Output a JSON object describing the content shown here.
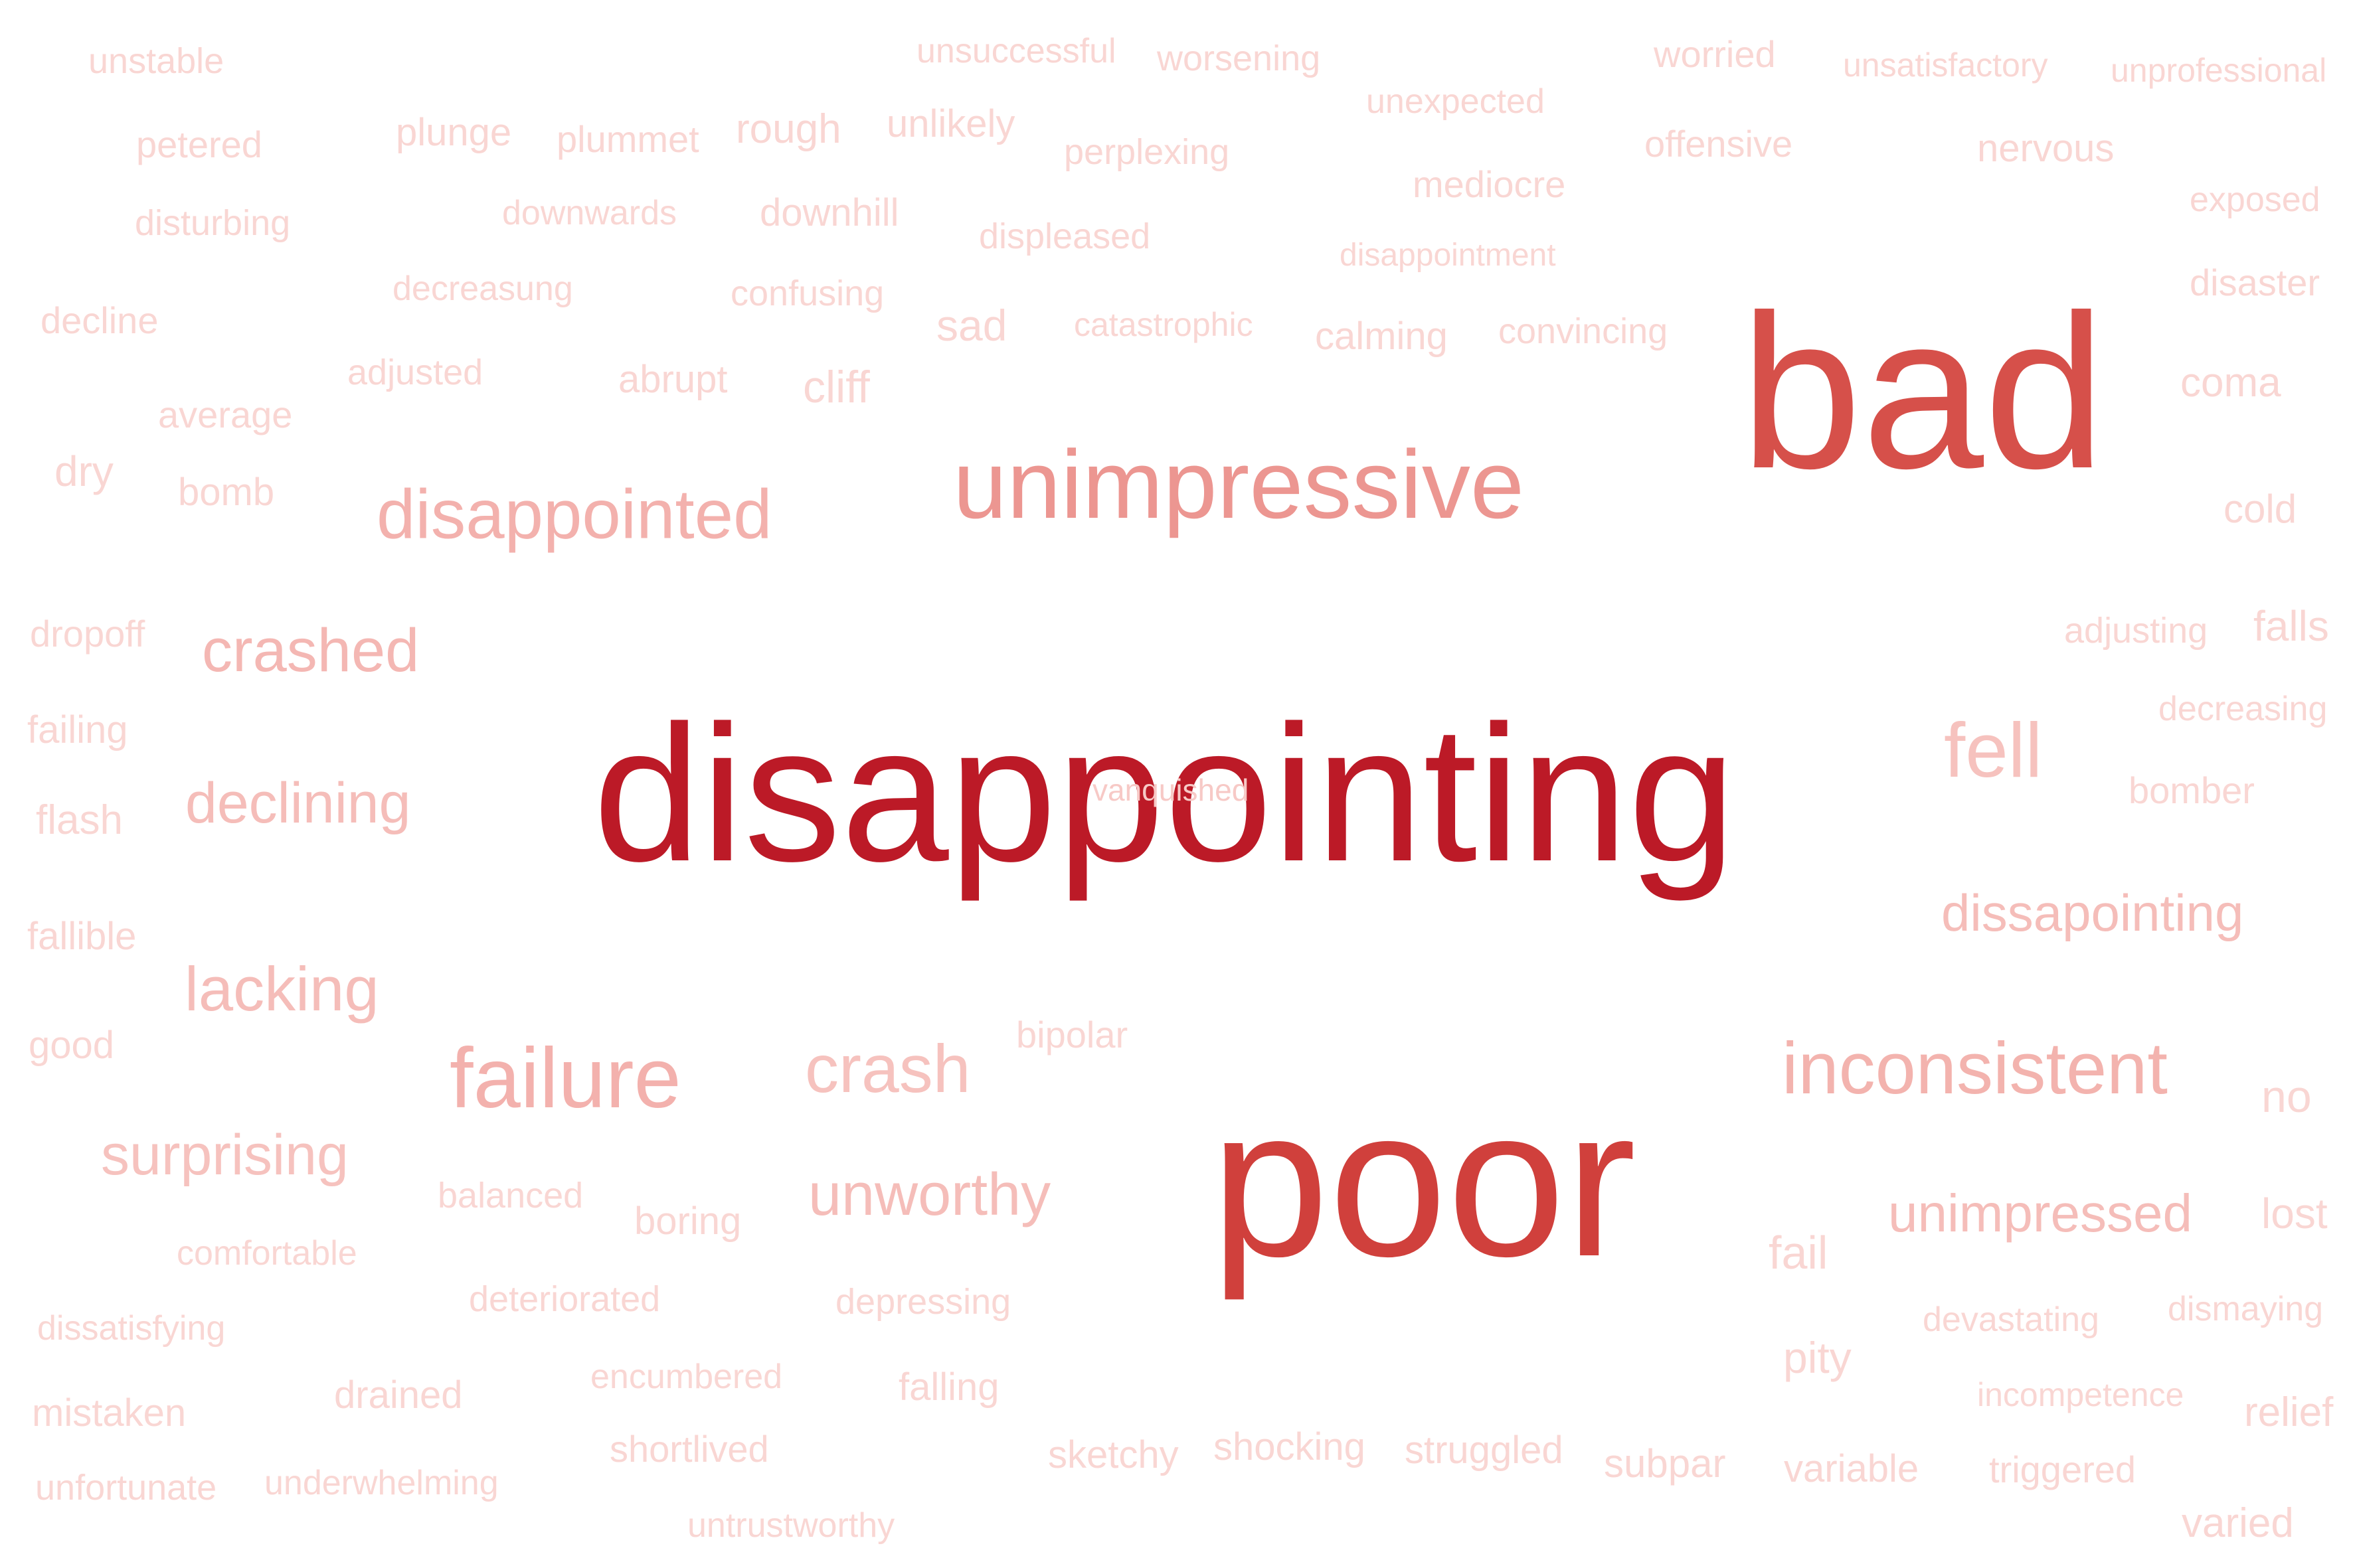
{
  "words": [
    {
      "text": "disappointing",
      "color": "#bc1a27"
    },
    {
      "text": "poor",
      "color": "#d0403c"
    },
    {
      "text": "bad",
      "color": "#d6504a"
    },
    {
      "text": "unimpressive",
      "color": "#ec9691"
    },
    {
      "text": "disappointed",
      "color": "#f3b1ad"
    },
    {
      "text": "inconsistent",
      "color": "#f3b3ae"
    },
    {
      "text": "failure",
      "color": "#f3b1ad"
    },
    {
      "text": "crash",
      "color": "#f6c2be"
    },
    {
      "text": "unworthy",
      "color": "#f5bdb9"
    },
    {
      "text": "crashed",
      "color": "#f4b7b3"
    },
    {
      "text": "declining",
      "color": "#f5bdb9"
    },
    {
      "text": "lacking",
      "color": "#f5bdb9"
    },
    {
      "text": "surprising",
      "color": "#f6c2be"
    },
    {
      "text": "fell",
      "color": "#f6c2be"
    },
    {
      "text": "dissapointing",
      "color": "#f5bdb9"
    },
    {
      "text": "unimpressed",
      "color": "#f5bdb9"
    },
    {
      "text": "vanquished",
      "color": "#f7c9c6"
    },
    {
      "text": "unstable",
      "color": "#f9d6d3"
    },
    {
      "text": "unsuccessful",
      "color": "#f9d6d3"
    },
    {
      "text": "worsening",
      "color": "#f9d6d3"
    },
    {
      "text": "worried",
      "color": "#f9d6d3"
    },
    {
      "text": "unsatisfactory",
      "color": "#f9d6d3"
    },
    {
      "text": "unprofessional",
      "color": "#f9d6d3"
    },
    {
      "text": "petered",
      "color": "#f9d6d3"
    },
    {
      "text": "plunge",
      "color": "#f9d6d3"
    },
    {
      "text": "plummet",
      "color": "#f9d6d3"
    },
    {
      "text": "rough",
      "color": "#f9d6d3"
    },
    {
      "text": "unlikely",
      "color": "#f9d6d3"
    },
    {
      "text": "unexpected",
      "color": "#f9d6d3"
    },
    {
      "text": "perplexing",
      "color": "#f9d6d3"
    },
    {
      "text": "offensive",
      "color": "#f9d6d3"
    },
    {
      "text": "nervous",
      "color": "#f9d6d3"
    },
    {
      "text": "disturbing",
      "color": "#f9d6d3"
    },
    {
      "text": "downwards",
      "color": "#f9d6d3"
    },
    {
      "text": "downhill",
      "color": "#f9d6d3"
    },
    {
      "text": "mediocre",
      "color": "#f9d6d3"
    },
    {
      "text": "exposed",
      "color": "#f9d6d3"
    },
    {
      "text": "displeased",
      "color": "#f9d6d3"
    },
    {
      "text": "disappointment",
      "color": "#f9d6d3"
    },
    {
      "text": "decreasung",
      "color": "#f9d6d3"
    },
    {
      "text": "confusing",
      "color": "#f9d6d3"
    },
    {
      "text": "disaster",
      "color": "#f9d6d3"
    },
    {
      "text": "decline",
      "color": "#f9d6d3"
    },
    {
      "text": "sad",
      "color": "#f9d6d3"
    },
    {
      "text": "catastrophic",
      "color": "#f9d6d3"
    },
    {
      "text": "calming",
      "color": "#f9d6d3"
    },
    {
      "text": "convincing",
      "color": "#f9d6d3"
    },
    {
      "text": "adjusted",
      "color": "#f9d6d3"
    },
    {
      "text": "abrupt",
      "color": "#f9d6d3"
    },
    {
      "text": "cliff",
      "color": "#f9d6d3"
    },
    {
      "text": "coma",
      "color": "#f9d6d3"
    },
    {
      "text": "average",
      "color": "#f9d6d3"
    },
    {
      "text": "dry",
      "color": "#f9d6d3"
    },
    {
      "text": "bomb",
      "color": "#f9d6d3"
    },
    {
      "text": "cold",
      "color": "#f9d6d3"
    },
    {
      "text": "dropoff",
      "color": "#f9d6d3"
    },
    {
      "text": "adjusting",
      "color": "#f9d6d3"
    },
    {
      "text": "falls",
      "color": "#f9d6d3"
    },
    {
      "text": "failing",
      "color": "#f9d6d3"
    },
    {
      "text": "decreasing",
      "color": "#f9d6d3"
    },
    {
      "text": "flash",
      "color": "#f9d6d3"
    },
    {
      "text": "bomber",
      "color": "#f9d6d3"
    },
    {
      "text": "fallible",
      "color": "#f9d6d3"
    },
    {
      "text": "good",
      "color": "#f9d6d3"
    },
    {
      "text": "bipolar",
      "color": "#f9d6d3"
    },
    {
      "text": "no",
      "color": "#f9d6d3"
    },
    {
      "text": "balanced",
      "color": "#f9d6d3"
    },
    {
      "text": "boring",
      "color": "#f9d6d3"
    },
    {
      "text": "lost",
      "color": "#f9d6d3"
    },
    {
      "text": "comfortable",
      "color": "#f9d6d3"
    },
    {
      "text": "fail",
      "color": "#f9d6d3"
    },
    {
      "text": "deteriorated",
      "color": "#f9d6d3"
    },
    {
      "text": "depressing",
      "color": "#f9d6d3"
    },
    {
      "text": "dismaying",
      "color": "#f9d6d3"
    },
    {
      "text": "dissatisfying",
      "color": "#f9d6d3"
    },
    {
      "text": "devastating",
      "color": "#f9d6d3"
    },
    {
      "text": "pity",
      "color": "#f9d6d3"
    },
    {
      "text": "drained",
      "color": "#f9d6d3"
    },
    {
      "text": "encumbered",
      "color": "#f9d6d3"
    },
    {
      "text": "falling",
      "color": "#f9d6d3"
    },
    {
      "text": "incompetence",
      "color": "#f9d6d3"
    },
    {
      "text": "mistaken",
      "color": "#f9d6d3"
    },
    {
      "text": "relief",
      "color": "#f9d6d3"
    },
    {
      "text": "shortlived",
      "color": "#f9d6d3"
    },
    {
      "text": "sketchy",
      "color": "#f9d6d3"
    },
    {
      "text": "shocking",
      "color": "#f9d6d3"
    },
    {
      "text": "struggled",
      "color": "#f9d6d3"
    },
    {
      "text": "subpar",
      "color": "#f9d6d3"
    },
    {
      "text": "variable",
      "color": "#f9d6d3"
    },
    {
      "text": "triggered",
      "color": "#f9d6d3"
    },
    {
      "text": "unfortunate",
      "color": "#f9d6d3"
    },
    {
      "text": "underwhelming",
      "color": "#f9d6d3"
    },
    {
      "text": "varied",
      "color": "#f9d6d3"
    },
    {
      "text": "untrustworthy",
      "color": "#f9d6d3"
    }
  ]
}
